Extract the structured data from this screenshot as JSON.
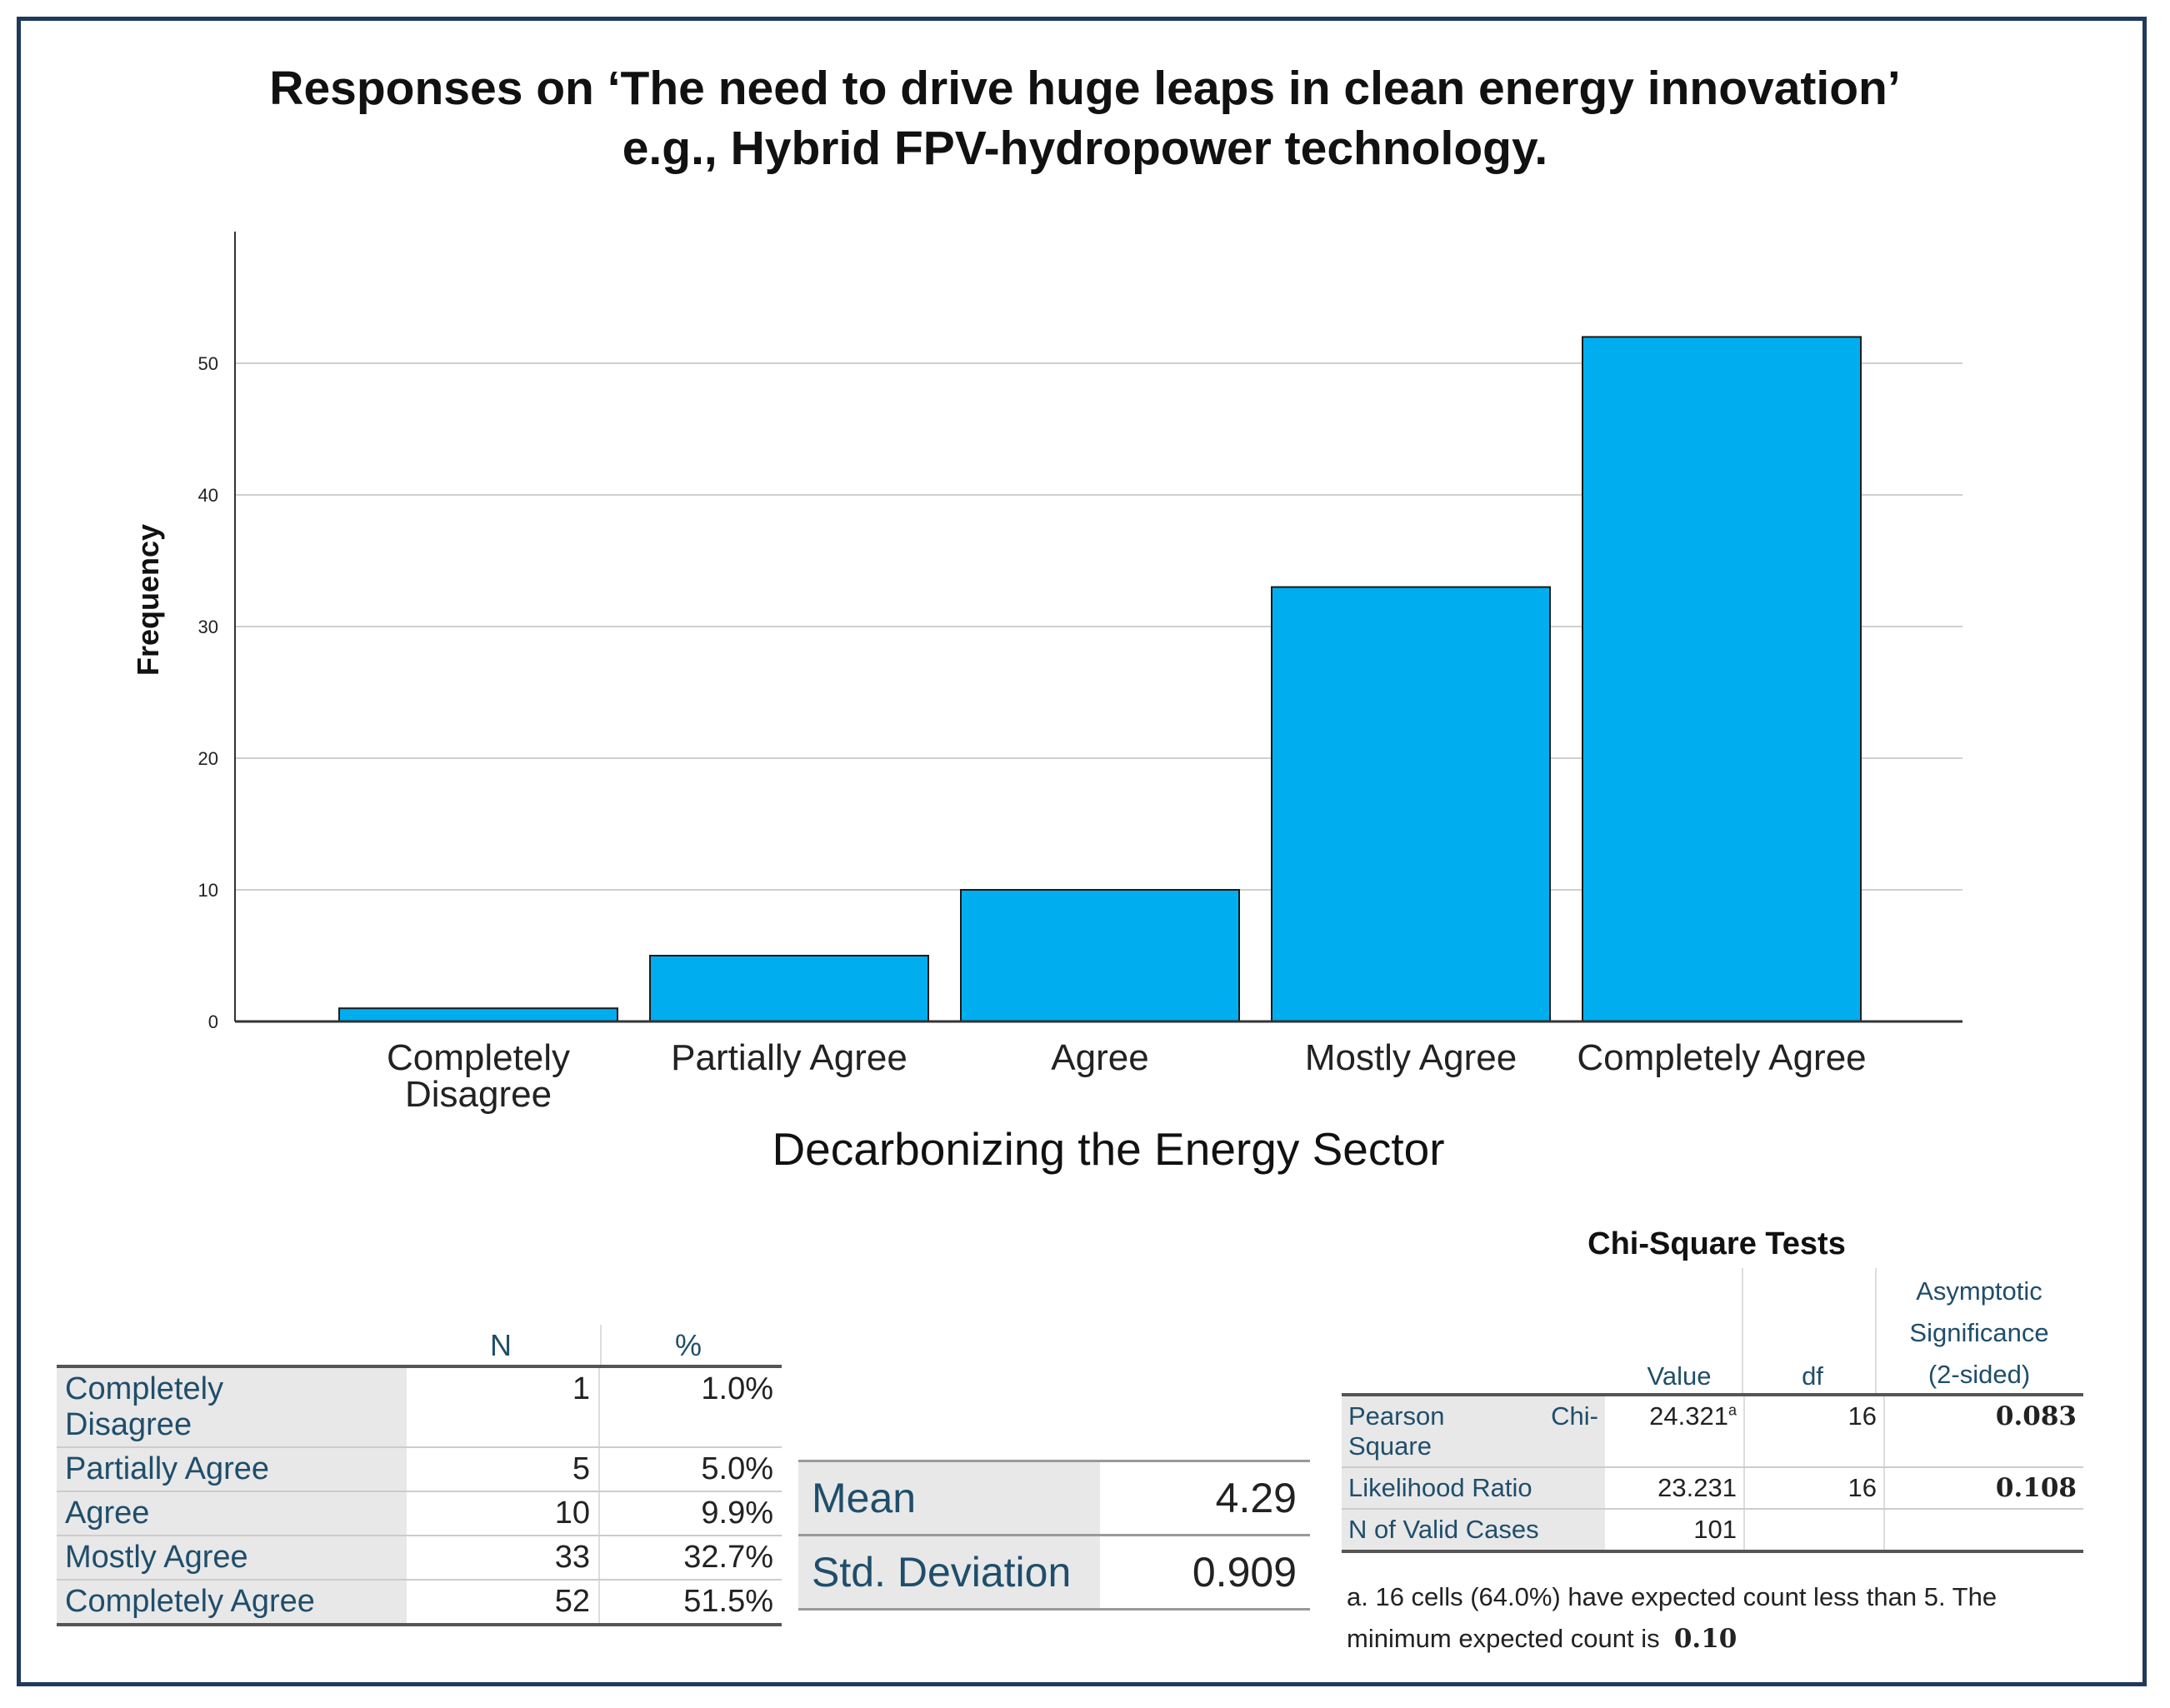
{
  "title_line1": "Responses on ‘The need to drive huge leaps in clean energy innovation’",
  "title_line2": "e.g., Hybrid FPV-hydropower technology.",
  "chart_data": {
    "type": "bar",
    "categories": [
      "Completely Disagree",
      "Partially Agree",
      "Agree",
      "Mostly Agree",
      "Completely Agree"
    ],
    "category_lines": [
      [
        "Completely",
        "Disagree"
      ],
      [
        "Partially Agree"
      ],
      [
        "Agree"
      ],
      [
        "Mostly Agree"
      ],
      [
        "Completely Agree"
      ]
    ],
    "values": [
      1,
      5,
      10,
      33,
      52
    ],
    "xlabel": "Decarbonizing the Energy Sector",
    "ylabel": "Frequency",
    "yticks": [
      0,
      10,
      20,
      30,
      40,
      50
    ],
    "ylim": [
      0,
      60
    ],
    "grid": true,
    "bar_color": "#00aef0"
  },
  "frequency_table": {
    "col_n": "N",
    "col_pct": "%",
    "rows": [
      {
        "label_line1": "Completely",
        "label_line2": "Disagree",
        "n": "1",
        "pct": "1.0%"
      },
      {
        "label_line1": "Partially Agree",
        "label_line2": "",
        "n": "5",
        "pct": "5.0%"
      },
      {
        "label_line1": "Agree",
        "label_line2": "",
        "n": "10",
        "pct": "9.9%"
      },
      {
        "label_line1": "Mostly Agree",
        "label_line2": "",
        "n": "33",
        "pct": "32.7%"
      },
      {
        "label_line1": "Completely Agree",
        "label_line2": "",
        "n": "52",
        "pct": "51.5%"
      }
    ]
  },
  "stats": {
    "mean_label": "Mean",
    "mean_value": "4.29",
    "sd_label": "Std. Deviation",
    "sd_value": "0.909"
  },
  "chi_square": {
    "title": "Chi-Square Tests",
    "col_value": "Value",
    "col_df": "df",
    "col_sig_1": "Asymptotic",
    "col_sig_2": "Significance",
    "col_sig_3": "(2-sided)",
    "rows": [
      {
        "label_a": "Pearson",
        "label_b": "Chi-",
        "label_c": "Square",
        "value": "24.321",
        "sup": "a",
        "df": "16",
        "sig": "0.083"
      },
      {
        "label": "Likelihood Ratio",
        "value": "23.231",
        "df": "16",
        "sig": "0.108"
      },
      {
        "label": "N of Valid Cases",
        "value": "101",
        "df": "",
        "sig": ""
      }
    ],
    "footnote_1": "a. 16 cells (64.0%) have expected count less than 5. The",
    "footnote_2": "minimum expected count is",
    "footnote_min": "0.10"
  }
}
